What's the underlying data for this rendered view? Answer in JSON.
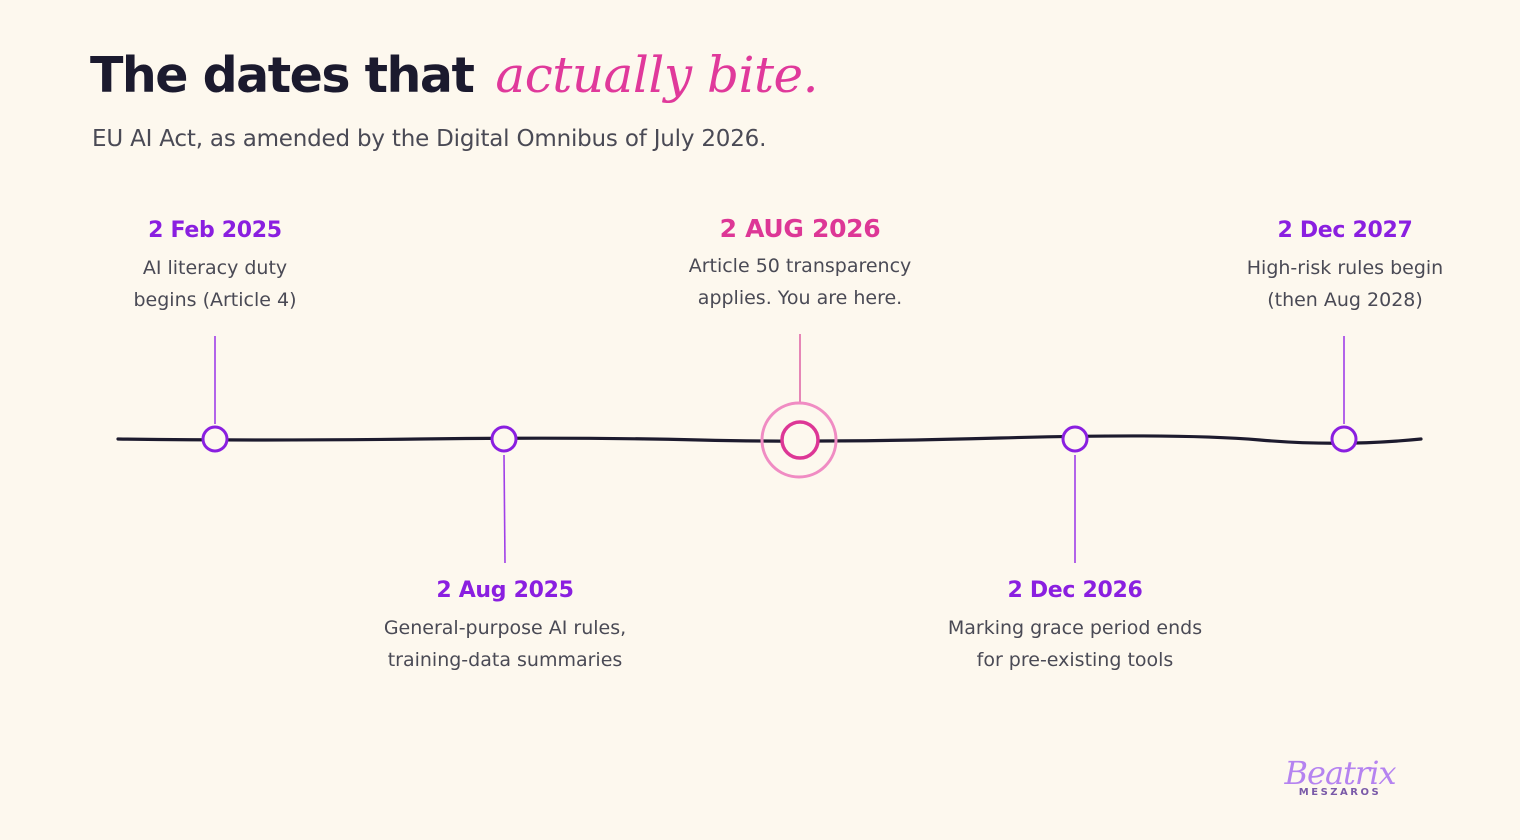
{
  "title": {
    "main": "The dates that",
    "accent": "actually bite."
  },
  "subtitle": "EU AI Act, as amended by the Digital Omnibus of July 2026.",
  "colors": {
    "background": "#fdf8ee",
    "title": "#1b1a2e",
    "accent_pink": "#e0399b",
    "purple": "#8a1fe0",
    "text_gray": "#4a4a55",
    "axis": "#1d1b2e"
  },
  "timeline": {
    "events": [
      {
        "date": "2 Feb 2025",
        "desc": [
          "AI literacy duty",
          "begins (Article 4)"
        ],
        "placement": "above",
        "highlight": false
      },
      {
        "date": "2 Aug 2025",
        "desc": [
          "General-purpose AI rules,",
          "training-data summaries"
        ],
        "placement": "below",
        "highlight": false
      },
      {
        "date": "2 AUG 2026",
        "desc": [
          "Article 50 transparency",
          "applies. You are here."
        ],
        "placement": "above",
        "highlight": true
      },
      {
        "date": "2 Dec 2026",
        "desc": [
          "Marking grace period ends",
          "for pre-existing tools"
        ],
        "placement": "below",
        "highlight": false
      },
      {
        "date": "2 Dec 2027",
        "desc": [
          "High-risk rules begin",
          "(then Aug 2028)"
        ],
        "placement": "above",
        "highlight": false
      }
    ]
  },
  "logo": {
    "name": "Beatrix",
    "sub": "MESZAROS"
  }
}
